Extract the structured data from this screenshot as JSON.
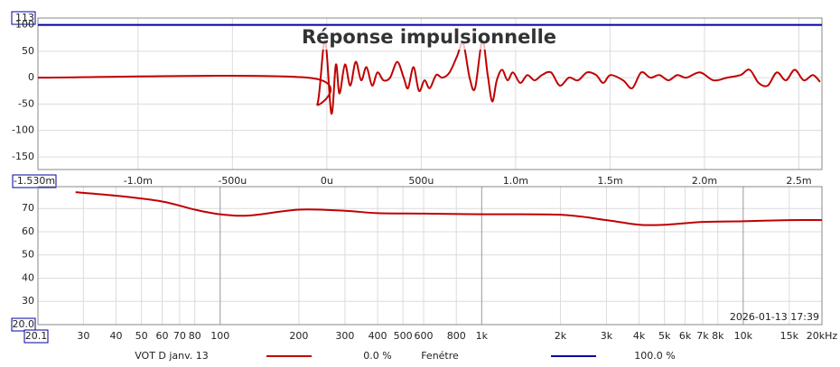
{
  "chart_data": [
    {
      "type": "line",
      "title": "Réponse impulsionnelle",
      "xlim": [
        -0.00153,
        0.002622
      ],
      "ylim": [
        -174,
        113
      ],
      "xticks": [
        {
          "value": -0.00153,
          "label": "-1.530m"
        },
        {
          "value": -0.001,
          "label": "-1.0m"
        },
        {
          "value": -0.0005,
          "label": "-500u"
        },
        {
          "value": 0,
          "label": "0u"
        },
        {
          "value": 0.0005,
          "label": "500u"
        },
        {
          "value": 0.001,
          "label": "1.0m"
        },
        {
          "value": 0.0015,
          "label": "1.5m"
        },
        {
          "value": 0.002,
          "label": "2.0m"
        },
        {
          "value": 0.0025,
          "label": "2.5m"
        }
      ],
      "yticks": [
        113,
        100,
        50,
        0,
        -50,
        -100,
        -150
      ],
      "grid": true,
      "series": [
        {
          "name": "VOT D janv. 13",
          "legend_value": "0.0 %",
          "color": "#c00000",
          "x": [
            -0.00153,
            -0.0001,
            -5e-05,
            -1e-05,
            2.4e-05,
            4.8e-05,
            6.7e-05,
            9.6e-05,
            0.000124,
            0.000153,
            0.000182,
            0.00021,
            0.00024,
            0.000268,
            0.0003,
            0.000335,
            0.000373,
            0.000407,
            0.00043,
            0.000459,
            0.000488,
            0.000517,
            0.000545,
            0.000579,
            0.000612,
            0.00065,
            0.000689,
            0.000722,
            0.000756,
            0.000785,
            0.000823,
            0.000852,
            0.000876,
            0.0009,
            0.000928,
            0.000957,
            0.000986,
            0.001024,
            0.001062,
            0.0011,
            0.001139,
            0.001187,
            0.001234,
            0.001282,
            0.00133,
            0.001378,
            0.001426,
            0.001464,
            0.001502,
            0.001569,
            0.001617,
            0.001665,
            0.001713,
            0.001761,
            0.001809,
            0.001856,
            0.001904,
            0.001976,
            0.002048,
            0.00212,
            0.002191,
            0.002239,
            0.002287,
            0.002335,
            0.002383,
            0.002431,
            0.002478,
            0.002526,
            0.002574,
            0.002612
          ],
          "values": [
            0,
            0,
            -50,
            70,
            -68,
            25,
            -30,
            25,
            -15,
            30,
            -5,
            20,
            -15,
            10,
            -5,
            0,
            30,
            0,
            -20,
            20,
            -25,
            -5,
            -20,
            5,
            0,
            10,
            40,
            65,
            0,
            -20,
            70,
            5,
            -45,
            -5,
            15,
            -5,
            10,
            -10,
            5,
            -5,
            5,
            10,
            -15,
            0,
            -5,
            10,
            5,
            -10,
            5,
            -5,
            -20,
            10,
            0,
            5,
            -5,
            5,
            0,
            10,
            -5,
            0,
            5,
            15,
            -10,
            -15,
            10,
            -5,
            15,
            -5,
            5,
            -8
          ]
        },
        {
          "name": "Fenétre",
          "legend_value": "100.0 %",
          "color": "#0000a0",
          "x": [
            -0.00153,
            0.002622
          ],
          "values": [
            100,
            100
          ]
        }
      ]
    },
    {
      "type": "line",
      "xscale": "log",
      "annotation": "2026-01-13 17:39",
      "xlim": [
        20.1,
        20000
      ],
      "ylim": [
        20,
        79.4
      ],
      "xticks": [
        20.1,
        30,
        40,
        50,
        60,
        70,
        80,
        100,
        200,
        300,
        400,
        500,
        600,
        800,
        {
          "value": 1000,
          "label": "1k"
        },
        {
          "value": 2000,
          "label": "2k"
        },
        {
          "value": 3000,
          "label": "3k"
        },
        {
          "value": 4000,
          "label": "4k"
        },
        {
          "value": 5000,
          "label": "5k"
        },
        {
          "value": 6000,
          "label": "6k"
        },
        {
          "value": 7000,
          "label": "7k"
        },
        {
          "value": 8000,
          "label": "8k"
        },
        {
          "value": 10000,
          "label": "10k"
        },
        {
          "value": 15000,
          "label": "15k"
        },
        {
          "value": 20000,
          "label": "20kHz"
        }
      ],
      "yticks": [
        {
          "value": 20,
          "label": "20.0"
        },
        30,
        40,
        50,
        60,
        70
      ],
      "grid": true,
      "series": [
        {
          "color": "#c00000",
          "x": [
            28,
            40,
            60,
            80,
            100,
            130,
            200,
            300,
            400,
            600,
            1000,
            2000,
            3000,
            4000,
            5000,
            7000,
            10000,
            15000,
            20000
          ],
          "values": [
            77,
            75.5,
            73,
            69.5,
            67.5,
            67,
            69.5,
            69,
            68,
            67.8,
            67.5,
            67.3,
            65,
            63,
            63,
            64.2,
            64.5,
            65,
            65
          ]
        }
      ]
    }
  ]
}
